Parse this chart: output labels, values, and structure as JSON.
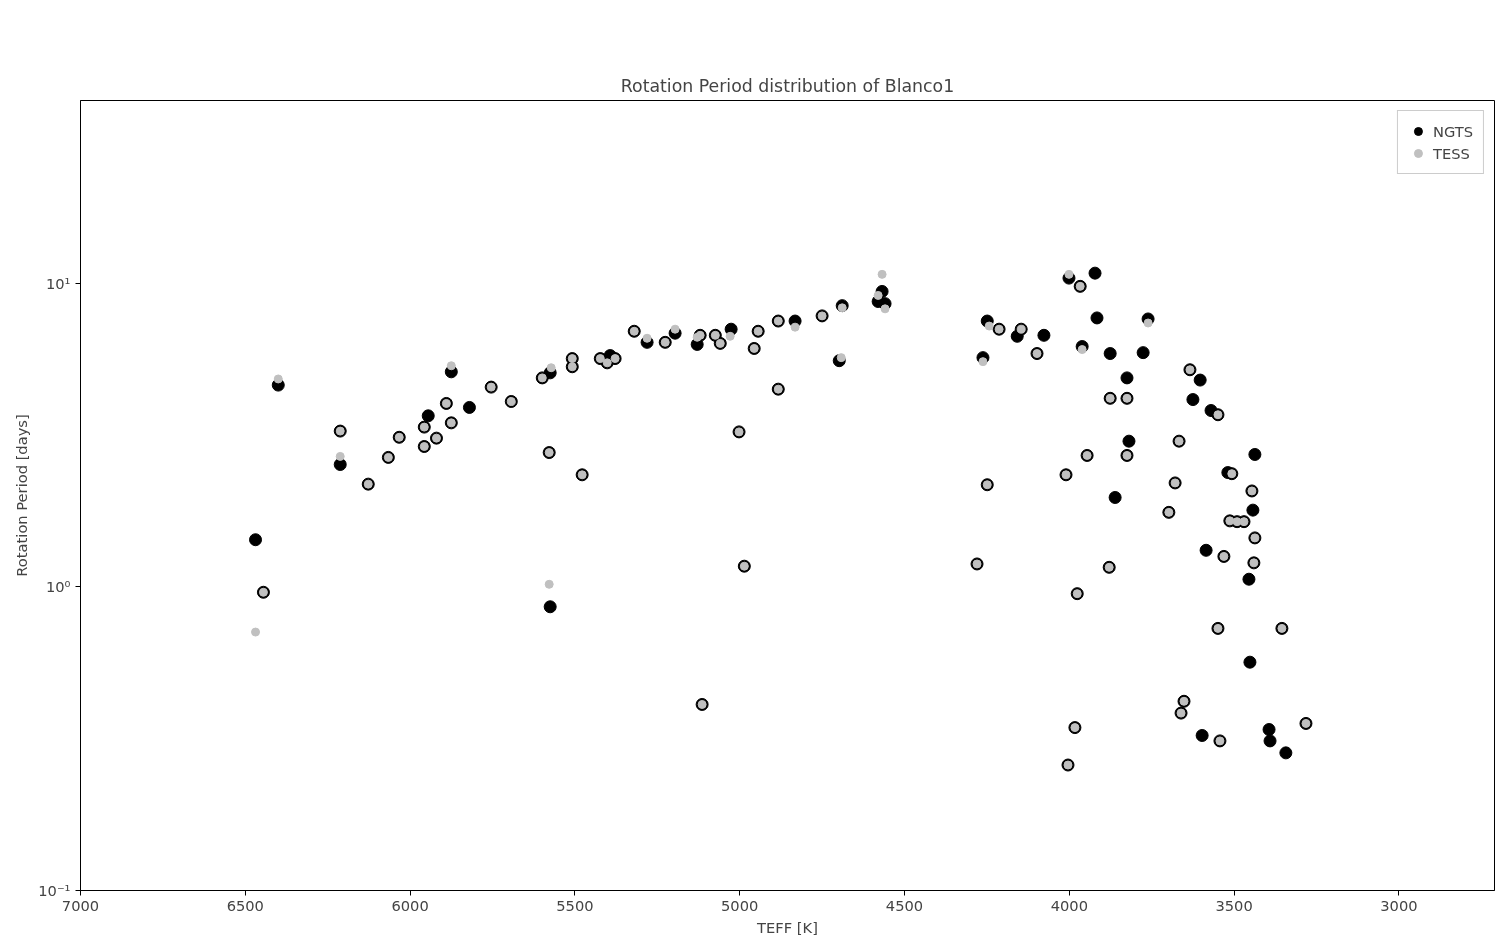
{
  "chart_data": {
    "type": "scatter",
    "title": "Rotation Period distribution of Blanco1",
    "xlabel": "TEFF [K]",
    "ylabel": "Rotation Period [days]",
    "log": "y",
    "grid": false,
    "legend": "top right",
    "marker": "circle",
    "xlim": [
      7000,
      2710
    ],
    "ylim": [
      0.1,
      40
    ],
    "xticks": [
      7000,
      6500,
      6000,
      5500,
      5000,
      4500,
      4000,
      3500,
      3000
    ],
    "yticks": [
      {
        "value": 0.1,
        "label": "10⁻¹"
      },
      {
        "value": 1,
        "label": "10⁰"
      },
      {
        "value": 10,
        "label": "10¹"
      }
    ],
    "series": [
      {
        "name": "NGTS",
        "color": "#000000",
        "x": [
          6469,
          6445,
          6400,
          6212,
          6212,
          6127,
          6066,
          6033,
          5957,
          5957,
          5945,
          5920,
          5890,
          5875,
          5875,
          5820,
          5754,
          5693,
          5599,
          5575,
          5578,
          5575,
          5508,
          5508,
          5478,
          5423,
          5402,
          5393,
          5378,
          5320,
          5281,
          5226,
          5196,
          5129,
          5120,
          5114,
          5074,
          5059,
          5026,
          5002,
          4986,
          4956,
          4944,
          4883,
          4883,
          4832,
          4750,
          4698,
          4689,
          4580,
          4568,
          4559,
          4280,
          4262,
          4249,
          4249,
          4213,
          4158,
          4146,
          4098,
          4077,
          4010,
          4004,
          4001,
          3983,
          3976,
          3967,
          3961,
          3946,
          3922,
          3916,
          3879,
          3876,
          3876,
          3861,
          3825,
          3825,
          3825,
          3819,
          3776,
          3761,
          3698,
          3679,
          3667,
          3661,
          3652,
          3634,
          3625,
          3603,
          3597,
          3585,
          3570,
          3549,
          3549,
          3543,
          3531,
          3519,
          3507,
          3513,
          3491,
          3470,
          3455,
          3452,
          3446,
          3443,
          3437,
          3437,
          3440,
          3394,
          3391,
          3355,
          3343,
          3282
        ],
        "values": [
          1.43,
          0.96,
          4.62,
          3.26,
          2.53,
          2.18,
          2.67,
          3.11,
          3.36,
          2.9,
          3.66,
          3.09,
          4.02,
          5.11,
          3.47,
          3.9,
          4.55,
          4.08,
          4.88,
          5.07,
          2.77,
          0.86,
          5.31,
          5.65,
          2.34,
          5.65,
          5.47,
          5.78,
          5.65,
          6.95,
          6.39,
          6.39,
          6.85,
          6.29,
          6.74,
          0.41,
          6.74,
          6.34,
          7.06,
          3.24,
          1.17,
          6.1,
          6.95,
          4.48,
          7.51,
          7.51,
          7.81,
          5.56,
          8.44,
          8.71,
          9.4,
          8.57,
          1.19,
          5.69,
          7.51,
          2.17,
          7.06,
          6.69,
          7.06,
          5.87,
          6.74,
          2.34,
          0.259,
          10.4,
          0.344,
          0.95,
          9.77,
          6.19,
          2.71,
          10.8,
          7.69,
          1.16,
          5.87,
          4.18,
          1.97,
          4.88,
          4.18,
          2.71,
          3.02,
          5.91,
          7.63,
          1.76,
          2.2,
          3.02,
          0.384,
          0.42,
          5.19,
          4.14,
          4.8,
          0.324,
          1.32,
          3.81,
          3.69,
          0.73,
          0.311,
          1.26,
          2.38,
          2.36,
          1.65,
          1.64,
          1.64,
          1.06,
          0.565,
          2.07,
          1.79,
          2.73,
          1.45,
          1.2,
          0.339,
          0.311,
          0.73,
          0.284,
          0.355
        ]
      },
      {
        "name": "TESS",
        "color": "#c0c0c0",
        "x": [
          6469,
          6445,
          6400,
          6212,
          6212,
          6127,
          6066,
          6033,
          5957,
          5957,
          5920,
          5890,
          5875,
          5875,
          5754,
          5693,
          5599,
          5572,
          5578,
          5578,
          5508,
          5508,
          5478,
          5423,
          5402,
          5378,
          5320,
          5281,
          5226,
          5196,
          5129,
          5120,
          5114,
          5074,
          5059,
          5029,
          5002,
          4986,
          4956,
          4944,
          4883,
          4883,
          4832,
          4750,
          4692,
          4689,
          4580,
          4568,
          4559,
          4280,
          4262,
          4243,
          4249,
          4213,
          4146,
          4098,
          4010,
          4004,
          4001,
          3983,
          3976,
          3967,
          3961,
          3946,
          3879,
          3876,
          3825,
          3825,
          3761,
          3698,
          3679,
          3667,
          3661,
          3652,
          3634,
          3549,
          3549,
          3543,
          3531,
          3507,
          3513,
          3491,
          3470,
          3446,
          3437,
          3440,
          3355,
          3282
        ],
        "values": [
          0.71,
          0.96,
          4.84,
          3.26,
          2.69,
          2.18,
          2.67,
          3.11,
          3.36,
          2.9,
          3.09,
          4.02,
          5.35,
          3.47,
          4.55,
          4.08,
          4.88,
          5.27,
          2.77,
          1.02,
          5.31,
          5.65,
          2.34,
          5.65,
          5.47,
          5.65,
          6.95,
          6.59,
          6.39,
          7.06,
          6.64,
          6.74,
          0.41,
          6.74,
          6.34,
          6.69,
          3.24,
          1.17,
          6.1,
          6.95,
          4.48,
          7.51,
          7.17,
          7.81,
          5.69,
          8.3,
          9.12,
          10.7,
          8.24,
          1.19,
          5.52,
          7.23,
          2.17,
          7.06,
          7.06,
          5.87,
          2.34,
          0.259,
          10.7,
          0.344,
          0.95,
          9.77,
          6.05,
          2.71,
          1.16,
          4.18,
          4.18,
          2.71,
          7.4,
          1.76,
          2.2,
          3.02,
          0.384,
          0.42,
          5.19,
          3.69,
          0.73,
          0.311,
          1.26,
          2.36,
          1.65,
          1.64,
          1.64,
          2.07,
          1.45,
          1.2,
          0.73,
          0.355
        ]
      }
    ]
  }
}
